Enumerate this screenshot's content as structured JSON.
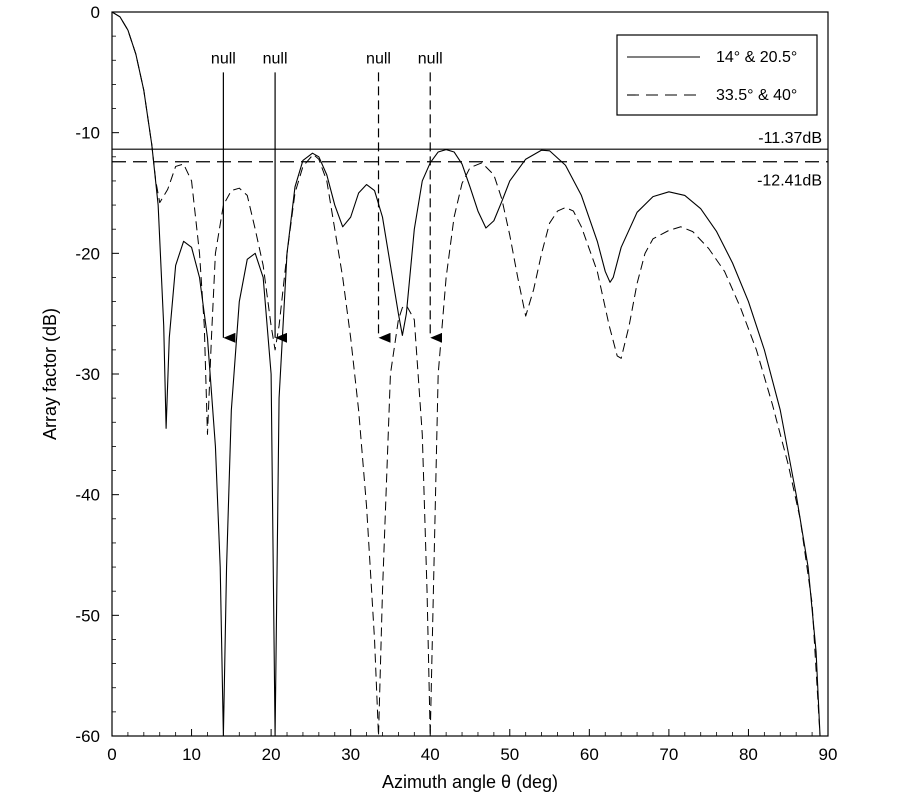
{
  "chart_data": {
    "type": "line",
    "xlabel": "Azimuth angle θ (deg)",
    "ylabel": "Array factor (dB)",
    "xlim": [
      0,
      90
    ],
    "ylim": [
      -60,
      0
    ],
    "x_ticks": [
      0,
      10,
      20,
      30,
      40,
      50,
      60,
      70,
      80,
      90
    ],
    "y_ticks": [
      0,
      -10,
      -20,
      -30,
      -40,
      -50,
      -60
    ],
    "grid": false,
    "legend_position": "top-right",
    "series": [
      {
        "name": "14° & 20.5°",
        "style": "solid",
        "color": "#000000",
        "points": [
          [
            0,
            0
          ],
          [
            1,
            -0.4
          ],
          [
            2,
            -1.5
          ],
          [
            3,
            -3.5
          ],
          [
            4,
            -6.5
          ],
          [
            5,
            -11
          ],
          [
            5.8,
            -16
          ],
          [
            6.5,
            -26
          ],
          [
            6.8,
            -34.5
          ],
          [
            7.2,
            -27
          ],
          [
            8,
            -21
          ],
          [
            9,
            -19
          ],
          [
            10,
            -19.5
          ],
          [
            11,
            -22
          ],
          [
            12,
            -27
          ],
          [
            13,
            -36
          ],
          [
            13.6,
            -46
          ],
          [
            14,
            -60
          ],
          [
            14.4,
            -46
          ],
          [
            15,
            -33
          ],
          [
            16,
            -24
          ],
          [
            17,
            -20.5
          ],
          [
            18,
            -20
          ],
          [
            19,
            -22
          ],
          [
            20,
            -30
          ],
          [
            20.5,
            -60
          ],
          [
            21,
            -32
          ],
          [
            22,
            -20
          ],
          [
            23,
            -14.5
          ],
          [
            24,
            -12.3
          ],
          [
            25.2,
            -11.7
          ],
          [
            26,
            -12
          ],
          [
            27,
            -13.5
          ],
          [
            28,
            -16
          ],
          [
            29,
            -17.8
          ],
          [
            30,
            -17
          ],
          [
            31,
            -15
          ],
          [
            32,
            -14.3
          ],
          [
            33,
            -14.8
          ],
          [
            34,
            -17
          ],
          [
            35,
            -21
          ],
          [
            36,
            -25
          ],
          [
            36.5,
            -26.8
          ],
          [
            37,
            -25
          ],
          [
            38,
            -18
          ],
          [
            39,
            -14
          ],
          [
            40,
            -12.5
          ],
          [
            41,
            -11.6
          ],
          [
            42,
            -11.4
          ],
          [
            43,
            -11.6
          ],
          [
            44,
            -12.6
          ],
          [
            45,
            -14.5
          ],
          [
            46,
            -16.5
          ],
          [
            47,
            -17.9
          ],
          [
            48,
            -17.3
          ],
          [
            49,
            -15.7
          ],
          [
            50,
            -14
          ],
          [
            52,
            -12.2
          ],
          [
            54,
            -11.45
          ],
          [
            55,
            -11.5
          ],
          [
            57,
            -12.7
          ],
          [
            59,
            -15.2
          ],
          [
            61,
            -19
          ],
          [
            62,
            -21.5
          ],
          [
            62.6,
            -22.4
          ],
          [
            63,
            -22
          ],
          [
            64,
            -19.5
          ],
          [
            66,
            -16.6
          ],
          [
            68,
            -15.3
          ],
          [
            70,
            -14.9
          ],
          [
            72,
            -15.2
          ],
          [
            74,
            -16.3
          ],
          [
            76,
            -18.2
          ],
          [
            78,
            -20.8
          ],
          [
            80,
            -24
          ],
          [
            82,
            -28
          ],
          [
            84,
            -33
          ],
          [
            86,
            -40
          ],
          [
            87.5,
            -46
          ],
          [
            88.5,
            -53
          ],
          [
            89,
            -60
          ]
        ]
      },
      {
        "name": "33.5° & 40°",
        "style": "dashed",
        "color": "#000000",
        "points": [
          [
            0,
            0
          ],
          [
            1,
            -0.4
          ],
          [
            2,
            -1.5
          ],
          [
            3,
            -3.5
          ],
          [
            4,
            -6.5
          ],
          [
            5,
            -11
          ],
          [
            5.5,
            -14
          ],
          [
            6,
            -15.8
          ],
          [
            7,
            -14.7
          ],
          [
            8,
            -12.8
          ],
          [
            9,
            -12.6
          ],
          [
            10,
            -14
          ],
          [
            11,
            -20
          ],
          [
            11.6,
            -26
          ],
          [
            12,
            -35
          ],
          [
            12.5,
            -27
          ],
          [
            13,
            -20
          ],
          [
            14,
            -16
          ],
          [
            15,
            -14.8
          ],
          [
            16,
            -14.6
          ],
          [
            17,
            -15.2
          ],
          [
            18,
            -18
          ],
          [
            19,
            -21
          ],
          [
            20,
            -26
          ],
          [
            20.5,
            -28
          ],
          [
            21,
            -26
          ],
          [
            22,
            -20
          ],
          [
            23,
            -15
          ],
          [
            24,
            -12.8
          ],
          [
            25.3,
            -11.8
          ],
          [
            26,
            -12.2
          ],
          [
            27,
            -14
          ],
          [
            28,
            -18
          ],
          [
            29,
            -22
          ],
          [
            30,
            -27
          ],
          [
            31,
            -33
          ],
          [
            32,
            -41
          ],
          [
            33,
            -52
          ],
          [
            33.5,
            -60
          ],
          [
            34,
            -48
          ],
          [
            35,
            -30
          ],
          [
            36,
            -25.5
          ],
          [
            36.5,
            -24.5
          ],
          [
            37,
            -24.3
          ],
          [
            38,
            -25.5
          ],
          [
            39,
            -35
          ],
          [
            39.6,
            -48
          ],
          [
            40,
            -60
          ],
          [
            40.4,
            -48
          ],
          [
            41,
            -30
          ],
          [
            42,
            -22
          ],
          [
            43,
            -17
          ],
          [
            44,
            -14.2
          ],
          [
            45,
            -12.9
          ],
          [
            46.5,
            -12.5
          ],
          [
            48,
            -13.5
          ],
          [
            49,
            -15.5
          ],
          [
            50,
            -18.5
          ],
          [
            51,
            -22
          ],
          [
            52,
            -25.2
          ],
          [
            53,
            -23
          ],
          [
            54,
            -20
          ],
          [
            55,
            -17.5
          ],
          [
            56,
            -16.5
          ],
          [
            57,
            -16.2
          ],
          [
            58,
            -16.5
          ],
          [
            59,
            -17.8
          ],
          [
            61,
            -21.5
          ],
          [
            62.5,
            -26
          ],
          [
            63.5,
            -28.5
          ],
          [
            64,
            -28.7
          ],
          [
            65,
            -26
          ],
          [
            66,
            -22.5
          ],
          [
            67,
            -20
          ],
          [
            68,
            -18.8
          ],
          [
            70,
            -18.1
          ],
          [
            71.5,
            -17.8
          ],
          [
            73,
            -18.2
          ],
          [
            75,
            -19.6
          ],
          [
            77,
            -21.5
          ],
          [
            79,
            -24.5
          ],
          [
            81,
            -28
          ],
          [
            83,
            -32.5
          ],
          [
            85,
            -37.5
          ],
          [
            86.5,
            -42
          ],
          [
            88,
            -49
          ],
          [
            89,
            -60
          ]
        ]
      }
    ],
    "reference_lines": [
      {
        "y": -11.37,
        "style": "solid",
        "label": "-11.37dB"
      },
      {
        "y": -12.41,
        "style": "dashed",
        "label": "-12.41dB"
      }
    ],
    "null_markers": [
      {
        "x": 14,
        "style": "solid",
        "label": "null"
      },
      {
        "x": 20.5,
        "style": "solid",
        "label": "null"
      },
      {
        "x": 33.5,
        "style": "dashed",
        "label": "null"
      },
      {
        "x": 40,
        "style": "dashed",
        "label": "null"
      }
    ],
    "null_marker_range": {
      "y_top": -5,
      "y_arrow": -27
    }
  }
}
